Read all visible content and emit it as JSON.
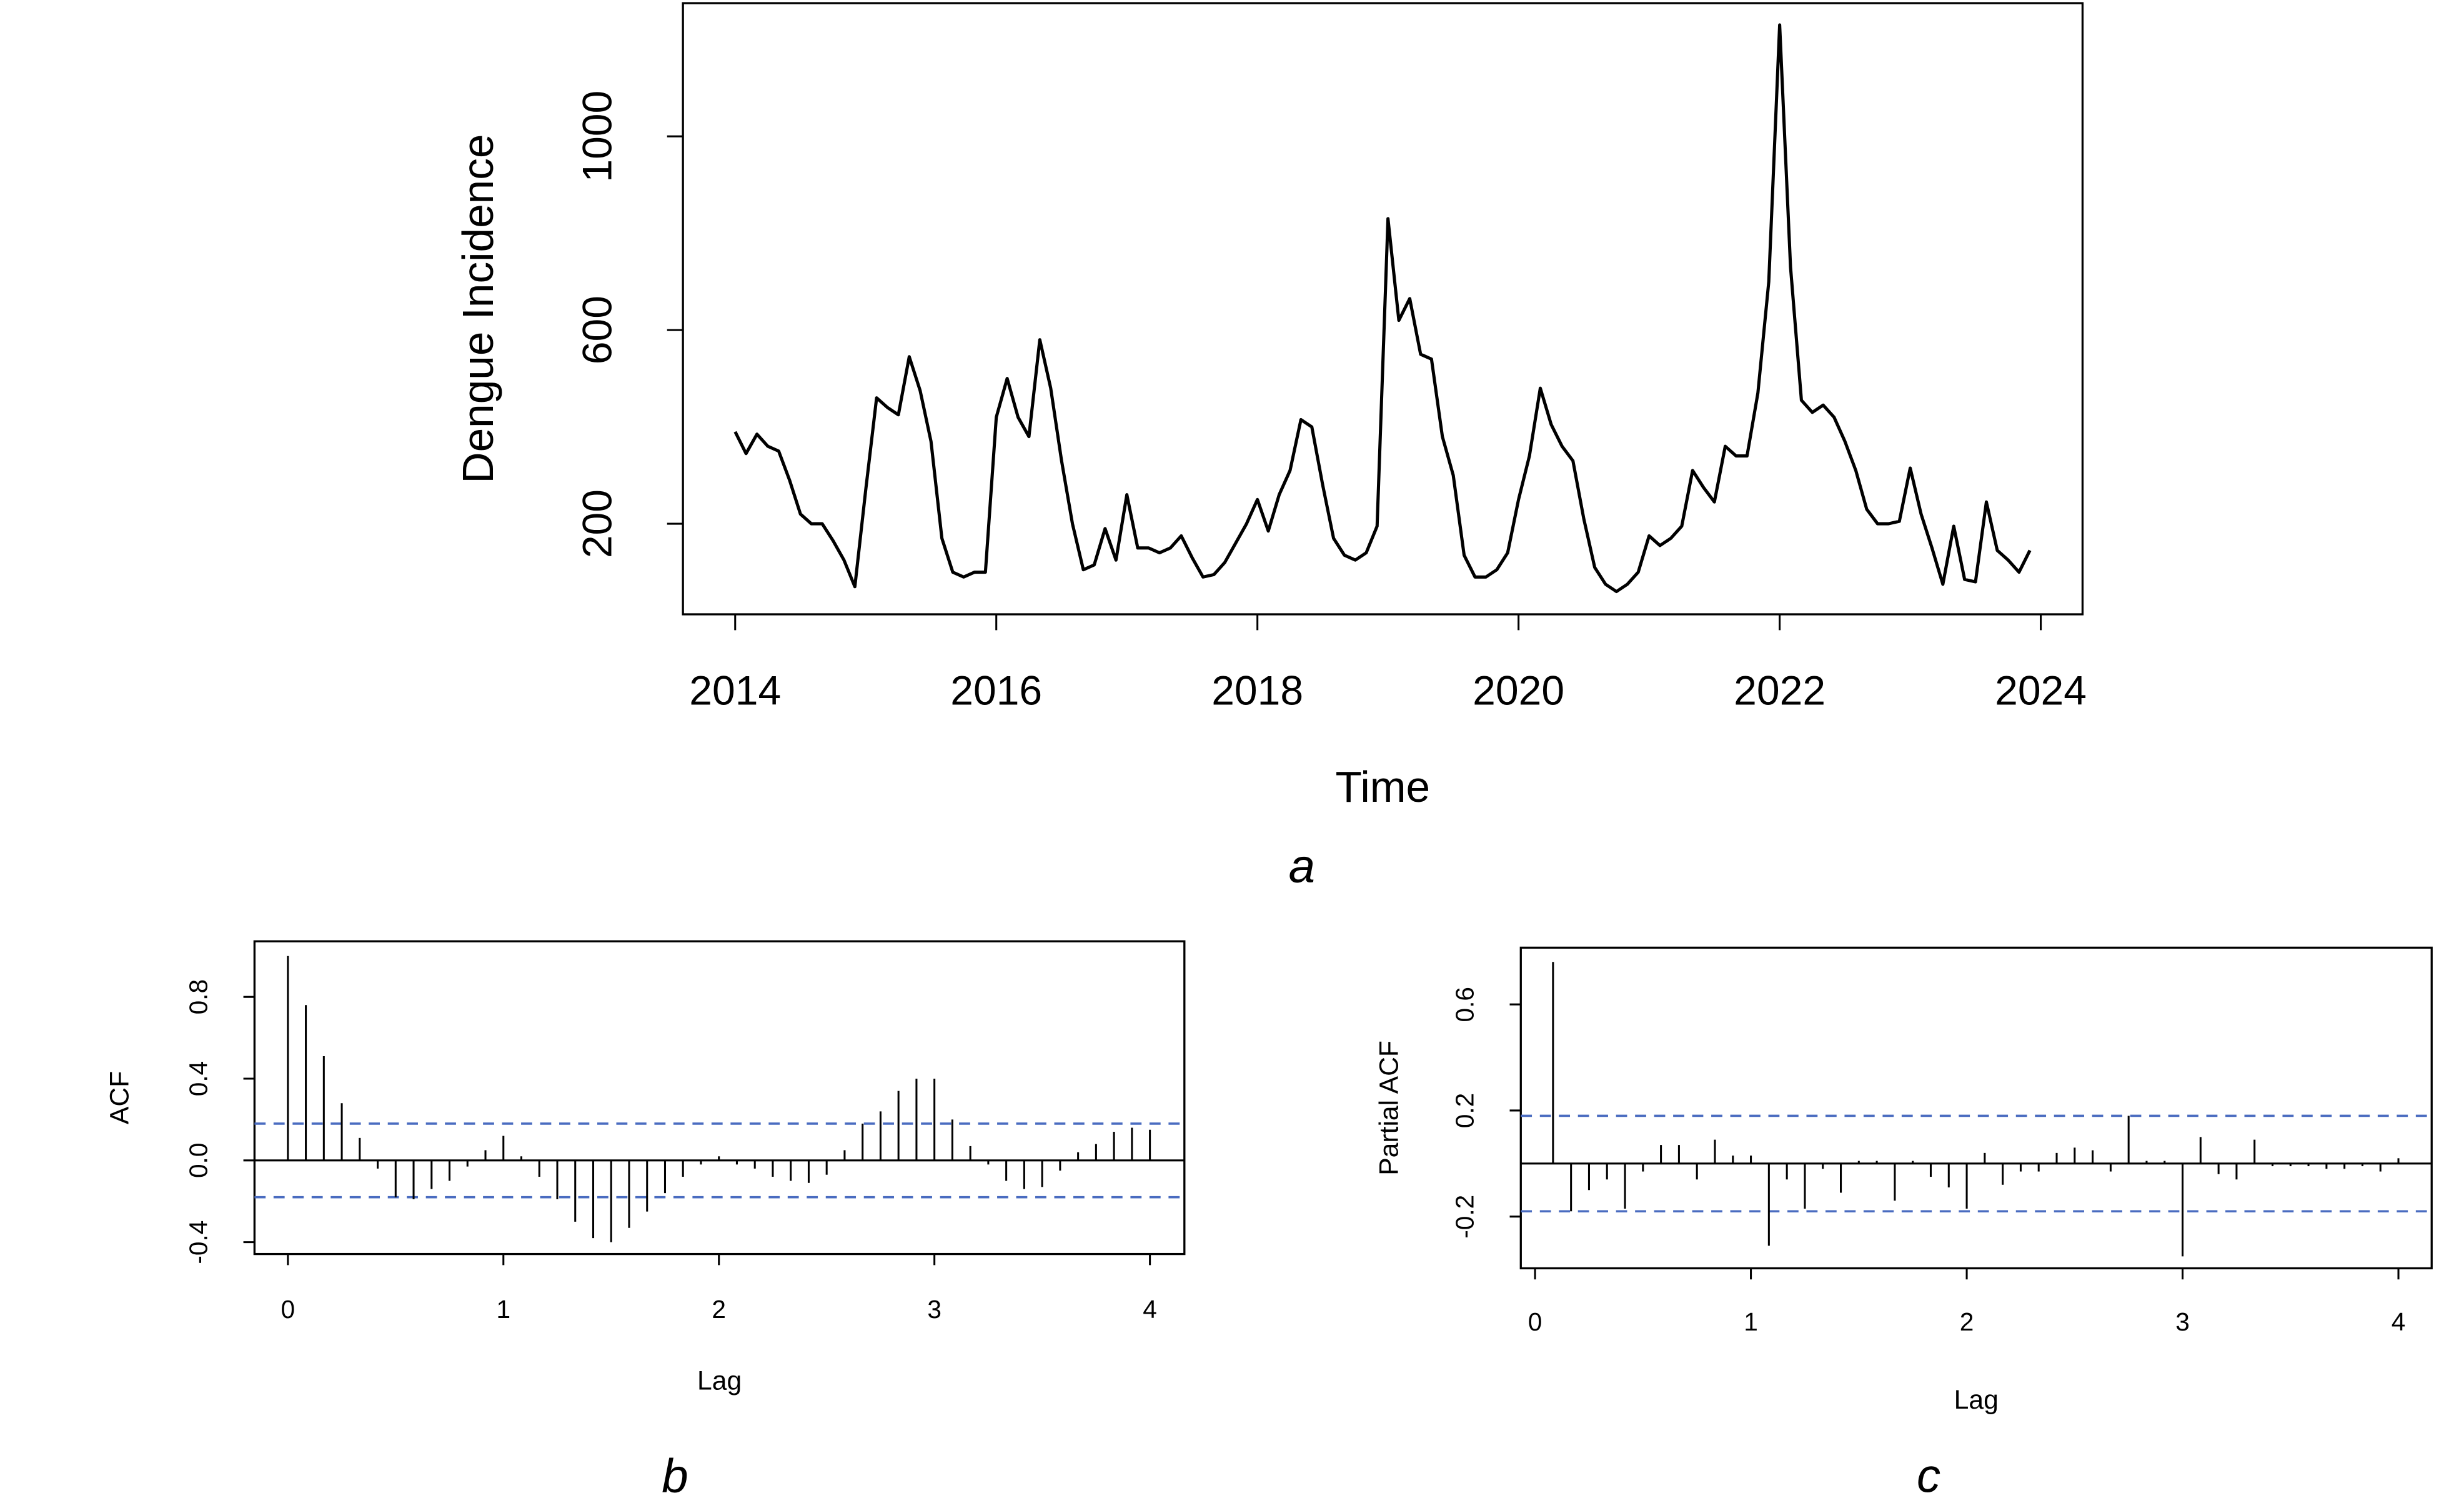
{
  "chart_data": [
    {
      "type": "line",
      "label": "a",
      "xlabel": "Time",
      "ylabel": "Dengue Incidence",
      "color": "#000000",
      "xlim": [
        2013.6,
        2024.32
      ],
      "ylim": [
        13,
        1275
      ],
      "xticks": [
        2014,
        2016,
        2018,
        2020,
        2022,
        2024
      ],
      "yticks": [
        200,
        600,
        1000
      ],
      "x": [
        2014,
        2014.0833,
        2014.1667,
        2014.25,
        2014.3333,
        2014.4167,
        2014.5,
        2014.5833,
        2014.6667,
        2014.75,
        2014.8333,
        2014.9167,
        2015,
        2015.0833,
        2015.1667,
        2015.25,
        2015.3333,
        2015.4167,
        2015.5,
        2015.5833,
        2015.6667,
        2015.75,
        2015.8333,
        2015.9167,
        2016,
        2016.0833,
        2016.1667,
        2016.25,
        2016.3333,
        2016.4167,
        2016.5,
        2016.5833,
        2016.6667,
        2016.75,
        2016.8333,
        2016.9167,
        2017,
        2017.0833,
        2017.1667,
        2017.25,
        2017.3333,
        2017.4167,
        2017.5,
        2017.5833,
        2017.6667,
        2017.75,
        2017.8333,
        2017.9167,
        2018,
        2018.0833,
        2018.1667,
        2018.25,
        2018.3333,
        2018.4167,
        2018.5,
        2018.5833,
        2018.6667,
        2018.75,
        2018.8333,
        2018.9167,
        2019,
        2019.0833,
        2019.1667,
        2019.25,
        2019.3333,
        2019.4167,
        2019.5,
        2019.5833,
        2019.6667,
        2019.75,
        2019.8333,
        2019.9167,
        2020,
        2020.0833,
        2020.1667,
        2020.25,
        2020.3333,
        2020.4167,
        2020.5,
        2020.5833,
        2020.6667,
        2020.75,
        2020.8333,
        2020.9167,
        2021,
        2021.0833,
        2021.1667,
        2021.25,
        2021.3333,
        2021.4167,
        2021.5,
        2021.5833,
        2021.6667,
        2021.75,
        2021.8333,
        2021.9167,
        2022,
        2022.0833,
        2022.1667,
        2022.25,
        2022.3333,
        2022.4167,
        2022.5,
        2022.5833,
        2022.6667,
        2022.75,
        2022.8333,
        2022.9167,
        2023,
        2023.0833,
        2023.1667,
        2023.25,
        2023.3333,
        2023.4167,
        2023.5,
        2023.5833,
        2023.6667,
        2023.75,
        2023.8333,
        2023.9167
      ],
      "values": [
        390,
        345,
        385,
        360,
        350,
        290,
        220,
        200,
        200,
        165,
        125,
        70,
        270,
        460,
        440,
        425,
        545,
        475,
        370,
        170,
        100,
        90,
        100,
        100,
        420,
        500,
        420,
        380,
        580,
        480,
        330,
        200,
        105,
        115,
        190,
        125,
        260,
        150,
        150,
        140,
        150,
        175,
        130,
        90,
        95,
        120,
        160,
        200,
        250,
        185,
        260,
        310,
        415,
        400,
        280,
        170,
        135,
        125,
        140,
        195,
        830,
        620,
        665,
        550,
        540,
        380,
        300,
        135,
        90,
        90,
        105,
        140,
        250,
        340,
        480,
        405,
        360,
        330,
        210,
        110,
        75,
        60,
        75,
        100,
        175,
        155,
        170,
        195,
        310,
        275,
        245,
        360,
        340,
        340,
        470,
        700,
        1230,
        730,
        455,
        430,
        445,
        420,
        370,
        310,
        230,
        200,
        200,
        205,
        315,
        220,
        150,
        75,
        195,
        85,
        80,
        245,
        145,
        125,
        100,
        145
      ]
    },
    {
      "type": "stem",
      "label": "b",
      "xlabel": "Lag",
      "ylabel": "ACF",
      "color": "#000000",
      "bound_color": "#4a6cc0",
      "xlim": [
        -0.155,
        4.16
      ],
      "ylim": [
        -0.458,
        1.072
      ],
      "xticks": [
        0,
        1,
        2,
        3,
        4
      ],
      "yticks": [
        -0.4,
        {
          "value": 0,
          "label": "0.0"
        },
        0.4,
        0.8
      ],
      "confidence_bounds": [
        0.18,
        -0.18
      ],
      "x": [
        0,
        0.0833,
        0.1667,
        0.25,
        0.3333,
        0.4167,
        0.5,
        0.5833,
        0.6667,
        0.75,
        0.8333,
        0.9167,
        1,
        1.0833,
        1.1667,
        1.25,
        1.3333,
        1.4167,
        1.5,
        1.5833,
        1.6667,
        1.75,
        1.8333,
        1.9167,
        2,
        2.0833,
        2.1667,
        2.25,
        2.3333,
        2.4167,
        2.5,
        2.5833,
        2.6667,
        2.75,
        2.8333,
        2.9167,
        3,
        3.0833,
        3.1667,
        3.25,
        3.3333,
        3.4167,
        3.5,
        3.5833,
        3.6667,
        3.75,
        3.8333,
        3.9167,
        4
      ],
      "values": [
        1.0,
        0.76,
        0.51,
        0.28,
        0.11,
        -0.04,
        -0.18,
        -0.19,
        -0.14,
        -0.1,
        -0.03,
        0.05,
        0.12,
        0.02,
        -0.08,
        -0.19,
        -0.3,
        -0.38,
        -0.4,
        -0.33,
        -0.25,
        -0.16,
        -0.08,
        -0.02,
        0.02,
        -0.02,
        -0.04,
        -0.08,
        -0.1,
        -0.11,
        -0.07,
        0.05,
        0.18,
        0.24,
        0.34,
        0.4,
        0.4,
        0.2,
        0.07,
        -0.02,
        -0.1,
        -0.14,
        -0.13,
        -0.05,
        0.04,
        0.08,
        0.14,
        0.16,
        0.15
      ]
    },
    {
      "type": "stem",
      "label": "c",
      "xlabel": "Lag",
      "ylabel": "Partial ACF",
      "color": "#000000",
      "bound_color": "#4a6cc0",
      "xlim": [
        -0.066,
        4.154
      ],
      "ylim": [
        -0.395,
        0.814
      ],
      "xticks": [
        0,
        1,
        2,
        3,
        4
      ],
      "yticks": [
        -0.2,
        0.2,
        0.6
      ],
      "confidence_bounds": [
        0.18,
        -0.18
      ],
      "x": [
        0.0833,
        0.1667,
        0.25,
        0.3333,
        0.4167,
        0.5,
        0.5833,
        0.6667,
        0.75,
        0.8333,
        0.9167,
        1,
        1.0833,
        1.1667,
        1.25,
        1.3333,
        1.4167,
        1.5,
        1.5833,
        1.6667,
        1.75,
        1.8333,
        1.9167,
        2,
        2.0833,
        2.1667,
        2.25,
        2.3333,
        2.4167,
        2.5,
        2.5833,
        2.6667,
        2.75,
        2.8333,
        2.9167,
        3,
        3.0833,
        3.1667,
        3.25,
        3.3333,
        3.4167,
        3.5,
        3.5833,
        3.6667,
        3.75,
        3.8333,
        3.9167,
        4
      ],
      "values": [
        0.76,
        -0.18,
        -0.1,
        -0.06,
        -0.17,
        -0.03,
        0.07,
        0.07,
        -0.06,
        0.09,
        0.03,
        0.03,
        -0.31,
        -0.06,
        -0.17,
        -0.02,
        -0.11,
        0.01,
        0.01,
        -0.14,
        0.01,
        -0.05,
        -0.09,
        -0.17,
        0.04,
        -0.08,
        -0.03,
        -0.03,
        0.04,
        0.06,
        0.05,
        -0.03,
        0.18,
        0.01,
        0.01,
        -0.35,
        0.1,
        -0.04,
        -0.06,
        0.09,
        -0.01,
        -0.01,
        -0.01,
        -0.02,
        -0.02,
        -0.01,
        -0.03,
        0.02
      ]
    }
  ]
}
